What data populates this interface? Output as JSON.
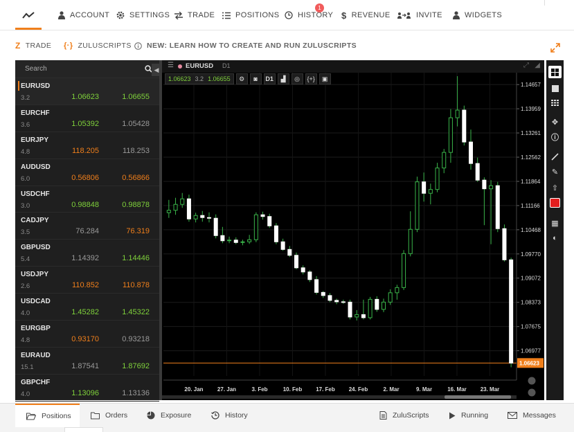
{
  "nav": {
    "items": [
      {
        "label": "ACCOUNT",
        "icon": "user-icon"
      },
      {
        "label": "SETTINGS",
        "icon": "gear-icon"
      },
      {
        "label": "TRADE",
        "icon": "arrows-icon"
      },
      {
        "label": "POSITIONS",
        "icon": "list-icon"
      },
      {
        "label": "HISTORY",
        "icon": "clock-icon"
      },
      {
        "label": "REVENUE",
        "icon": "dollar-icon"
      },
      {
        "label": "INVITE",
        "icon": "invite-icon"
      },
      {
        "label": "WIDGETS",
        "icon": "user-icon"
      }
    ],
    "history_badge": "1",
    "accent": "#f07f1b"
  },
  "subnav": {
    "trade": "TRADE",
    "zuluscripts": "ZULUSCRIPTS",
    "news": "NEW: LEARN HOW TO CREATE AND RUN ZULUSCRIPTS"
  },
  "watchlist": {
    "search_placeholder": "Search",
    "rows": [
      {
        "symbol": "EURUSD",
        "spread": "3.2",
        "bid": "1.06623",
        "ask": "1.06655",
        "bid_color": "g",
        "ask_color": "g",
        "active": true
      },
      {
        "symbol": "EURCHF",
        "spread": "3.6",
        "bid": "1.05392",
        "ask": "1.05428",
        "bid_color": "g",
        "ask_color": "n"
      },
      {
        "symbol": "EURJPY",
        "spread": "4.8",
        "bid": "118.205",
        "ask": "118.253",
        "bid_color": "o",
        "ask_color": "n"
      },
      {
        "symbol": "AUDUSD",
        "spread": "6.0",
        "bid": "0.56806",
        "ask": "0.56866",
        "bid_color": "o",
        "ask_color": "o"
      },
      {
        "symbol": "USDCHF",
        "spread": "3.0",
        "bid": "0.98848",
        "ask": "0.98878",
        "bid_color": "g",
        "ask_color": "g"
      },
      {
        "symbol": "CADJPY",
        "spread": "3.5",
        "bid": "76.284",
        "ask": "76.319",
        "bid_color": "n",
        "ask_color": "o"
      },
      {
        "symbol": "GBPUSD",
        "spread": "5.4",
        "bid": "1.14392",
        "ask": "1.14446",
        "bid_color": "n",
        "ask_color": "g"
      },
      {
        "symbol": "USDJPY",
        "spread": "2.6",
        "bid": "110.852",
        "ask": "110.878",
        "bid_color": "o",
        "ask_color": "o"
      },
      {
        "symbol": "USDCAD",
        "spread": "4.0",
        "bid": "1.45282",
        "ask": "1.45322",
        "bid_color": "g",
        "ask_color": "g"
      },
      {
        "symbol": "EURGBP",
        "spread": "4.8",
        "bid": "0.93170",
        "ask": "0.93218",
        "bid_color": "o",
        "ask_color": "n"
      },
      {
        "symbol": "EURAUD",
        "spread": "15.1",
        "bid": "1.87541",
        "ask": "1.87692",
        "bid_color": "n",
        "ask_color": "g"
      },
      {
        "symbol": "GBPCHF",
        "spread": "4.0",
        "bid": "1.13096",
        "ask": "1.13136",
        "bid_color": "g",
        "ask_color": "n"
      }
    ]
  },
  "chart": {
    "symbol": "EURUSD",
    "timeframe": "D1",
    "quote_bid": "1.06623",
    "quote_spread": "3.2",
    "quote_ask": "1.06655",
    "toolbar": {
      "timeframe_label": "D1",
      "script_label": "{+}"
    },
    "current_price_label": "1.06623"
  },
  "chart_data": {
    "type": "candlestick",
    "title": "",
    "ylim": [
      1.0625,
      1.15
    ],
    "y_ticks": [
      "1.14657",
      "1.13959",
      "1.13261",
      "1.12562",
      "1.11864",
      "1.11166",
      "1.10468",
      "1.09770",
      "1.09072",
      "1.08373",
      "1.07675",
      "1.06977"
    ],
    "x_ticks": [
      "20. Jan",
      "27. Jan",
      "3. Feb",
      "10. Feb",
      "17. Feb",
      "24. Feb",
      "2. Mar",
      "9. Mar",
      "16. Mar",
      "23. Mar"
    ],
    "current_price": 1.06623,
    "candles": [
      {
        "o": 1.1096,
        "h": 1.1133,
        "l": 1.1081,
        "c": 1.1103
      },
      {
        "o": 1.1103,
        "h": 1.1139,
        "l": 1.109,
        "c": 1.112
      },
      {
        "o": 1.112,
        "h": 1.1153,
        "l": 1.111,
        "c": 1.1136
      },
      {
        "o": 1.1136,
        "h": 1.1148,
        "l": 1.107,
        "c": 1.1078
      },
      {
        "o": 1.1078,
        "h": 1.1096,
        "l": 1.1068,
        "c": 1.1088
      },
      {
        "o": 1.1088,
        "h": 1.1101,
        "l": 1.107,
        "c": 1.1082
      },
      {
        "o": 1.1082,
        "h": 1.1097,
        "l": 1.1068,
        "c": 1.108
      },
      {
        "o": 1.108,
        "h": 1.1091,
        "l": 1.1022,
        "c": 1.103
      },
      {
        "o": 1.103,
        "h": 1.1055,
        "l": 1.1008,
        "c": 1.1015
      },
      {
        "o": 1.1015,
        "h": 1.1027,
        "l": 1.1008,
        "c": 1.1017
      },
      {
        "o": 1.1017,
        "h": 1.1025,
        "l": 1.1005,
        "c": 1.101
      },
      {
        "o": 1.101,
        "h": 1.1018,
        "l": 1.1002,
        "c": 1.1012
      },
      {
        "o": 1.1012,
        "h": 1.1032,
        "l": 1.1006,
        "c": 1.1018
      },
      {
        "o": 1.1018,
        "h": 1.1097,
        "l": 1.1011,
        "c": 1.109
      },
      {
        "o": 1.109,
        "h": 1.1099,
        "l": 1.1076,
        "c": 1.1085
      },
      {
        "o": 1.1085,
        "h": 1.1093,
        "l": 1.1052,
        "c": 1.1058
      },
      {
        "o": 1.1058,
        "h": 1.1066,
        "l": 1.1005,
        "c": 1.1012
      },
      {
        "o": 1.1012,
        "h": 1.1021,
        "l": 1.0986,
        "c": 1.099
      },
      {
        "o": 1.099,
        "h": 1.1,
        "l": 1.0968,
        "c": 1.0973
      },
      {
        "o": 1.0973,
        "h": 1.0981,
        "l": 1.0933,
        "c": 1.0937
      },
      {
        "o": 1.0937,
        "h": 1.0944,
        "l": 1.0918,
        "c": 1.0925
      },
      {
        "o": 1.0925,
        "h": 1.093,
        "l": 1.0896,
        "c": 1.0903
      },
      {
        "o": 1.0903,
        "h": 1.0913,
        "l": 1.086,
        "c": 1.0866
      },
      {
        "o": 1.0866,
        "h": 1.087,
        "l": 1.085,
        "c": 1.0857
      },
      {
        "o": 1.0857,
        "h": 1.0864,
        "l": 1.0838,
        "c": 1.0843
      },
      {
        "o": 1.0843,
        "h": 1.0848,
        "l": 1.0832,
        "c": 1.0839
      },
      {
        "o": 1.0839,
        "h": 1.0845,
        "l": 1.0833,
        "c": 1.0838
      },
      {
        "o": 1.0838,
        "h": 1.0845,
        "l": 1.0788,
        "c": 1.0795
      },
      {
        "o": 1.0795,
        "h": 1.0815,
        "l": 1.0785,
        "c": 1.0802
      },
      {
        "o": 1.0802,
        "h": 1.0845,
        "l": 1.0788,
        "c": 1.0793
      },
      {
        "o": 1.0793,
        "h": 1.0853,
        "l": 1.0788,
        "c": 1.0846
      },
      {
        "o": 1.0846,
        "h": 1.0855,
        "l": 1.081,
        "c": 1.0817
      },
      {
        "o": 1.0817,
        "h": 1.0848,
        "l": 1.0809,
        "c": 1.0838
      },
      {
        "o": 1.0838,
        "h": 1.0875,
        "l": 1.083,
        "c": 1.0865
      },
      {
        "o": 1.0865,
        "h": 1.0888,
        "l": 1.0845,
        "c": 1.088
      },
      {
        "o": 1.088,
        "h": 1.0988,
        "l": 1.0873,
        "c": 1.0978
      },
      {
        "o": 1.0978,
        "h": 1.11,
        "l": 1.097,
        "c": 1.1048
      },
      {
        "o": 1.1048,
        "h": 1.12,
        "l": 1.104,
        "c": 1.1185
      },
      {
        "o": 1.1185,
        "h": 1.1212,
        "l": 1.1128,
        "c": 1.1152
      },
      {
        "o": 1.1152,
        "h": 1.118,
        "l": 1.112,
        "c": 1.1163
      },
      {
        "o": 1.1163,
        "h": 1.124,
        "l": 1.1155,
        "c": 1.1225
      },
      {
        "o": 1.1225,
        "h": 1.128,
        "l": 1.121,
        "c": 1.127
      },
      {
        "o": 1.127,
        "h": 1.1395,
        "l": 1.124,
        "c": 1.137
      },
      {
        "o": 1.137,
        "h": 1.149,
        "l": 1.1345,
        "c": 1.1392
      },
      {
        "o": 1.1392,
        "h": 1.1405,
        "l": 1.129,
        "c": 1.13
      },
      {
        "o": 1.13,
        "h": 1.1336,
        "l": 1.122,
        "c": 1.1238
      },
      {
        "o": 1.1238,
        "h": 1.1255,
        "l": 1.1185,
        "c": 1.119
      },
      {
        "o": 1.119,
        "h": 1.1198,
        "l": 1.106,
        "c": 1.1165
      },
      {
        "o": 1.1165,
        "h": 1.119,
        "l": 1.1005,
        "c": 1.1174
      },
      {
        "o": 1.1174,
        "h": 1.1185,
        "l": 1.104,
        "c": 1.105
      },
      {
        "o": 1.105,
        "h": 1.1062,
        "l": 1.0955,
        "c": 1.096
      },
      {
        "o": 1.096,
        "h": 1.0966,
        "l": 1.065,
        "c": 1.0662
      }
    ]
  },
  "bottom": {
    "tabs": [
      "Positions",
      "Orders",
      "Exposure",
      "History"
    ],
    "right_tabs": [
      "ZuluScripts",
      "Running",
      "Messages"
    ]
  }
}
